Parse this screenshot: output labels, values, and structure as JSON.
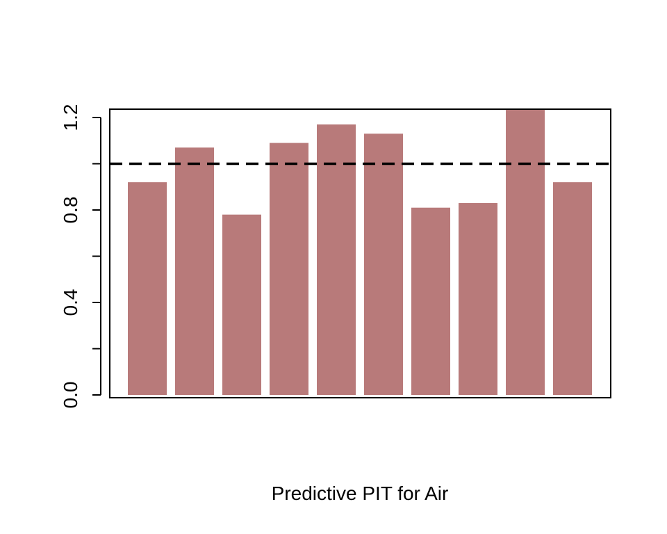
{
  "chart_data": {
    "type": "bar",
    "title": "",
    "xlabel": "Predictive PIT for Air",
    "ylabel": "",
    "ylim": [
      0,
      1.24
    ],
    "yticks": [
      0.0,
      0.4,
      0.8,
      1.2
    ],
    "ytick_labels": [
      "0.0",
      "0.4",
      "0.8",
      "1.2"
    ],
    "ytick_minor": [
      0.2,
      0.6,
      1.0
    ],
    "values": [
      0.92,
      1.07,
      0.78,
      1.09,
      1.17,
      1.13,
      0.81,
      0.83,
      1.25,
      0.92
    ],
    "reference_line": 1.0,
    "bar_color": "#b87a7a",
    "reference_line_color": "#000000",
    "grid": false,
    "legend": "none"
  }
}
